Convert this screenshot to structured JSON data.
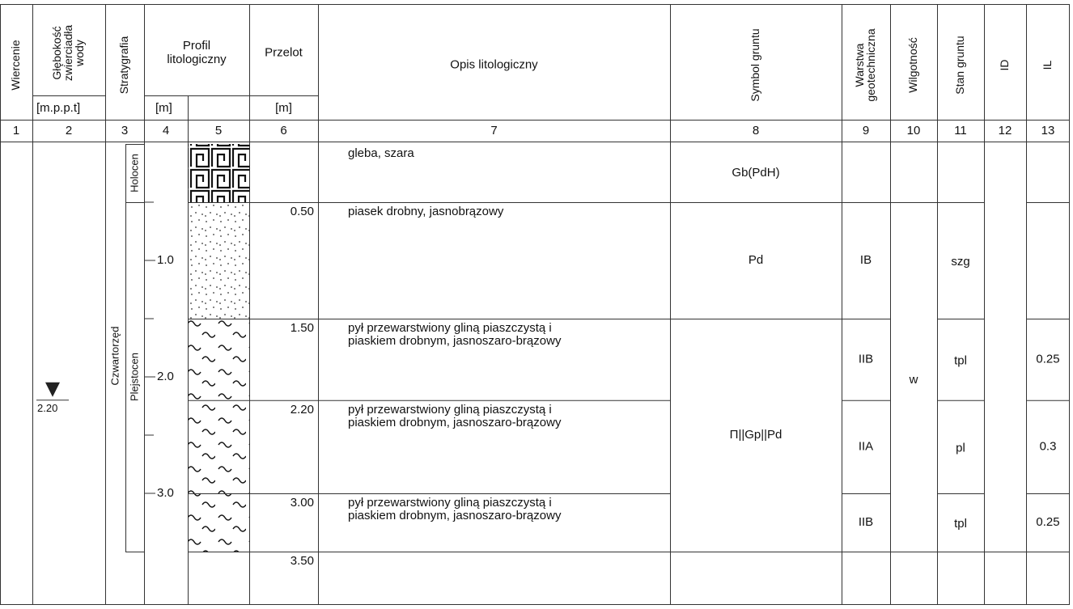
{
  "header": {
    "columns": [
      {
        "title": [
          "Wiercenie"
        ]
      },
      {
        "title": [
          "Głębokość",
          "zwierciadła",
          "wody"
        ],
        "unit": "[m.p.p.t]"
      },
      {
        "title": [
          "Stratygrafia"
        ]
      },
      {
        "title": [
          "Profil",
          "litologiczny"
        ],
        "unit": "[m]"
      },
      {
        "title": [
          "Przelot"
        ],
        "unit": "[m]"
      },
      {
        "title": [
          "Opis litologiczny"
        ]
      },
      {
        "title": [
          "Symbol gruntu"
        ]
      },
      {
        "title": [
          "Warstwa",
          "geotechniczna"
        ]
      },
      {
        "title": [
          "Wilgotność"
        ]
      },
      {
        "title": [
          "Stan gruntu"
        ]
      },
      {
        "title": [
          "ID"
        ]
      },
      {
        "title": [
          "IL"
        ]
      }
    ],
    "numbers": [
      "1",
      "2",
      "3",
      "4",
      "5",
      "6",
      "7",
      "8",
      "9",
      "10",
      "11",
      "12",
      "13"
    ]
  },
  "water_level": "2.20",
  "stratigraphy": {
    "system": "Czwartorzęd",
    "units": [
      "Holocen",
      "Plejstocen"
    ]
  },
  "depth_scale": [
    "1.0",
    "2.0",
    "3.0"
  ],
  "layers": [
    {
      "description": [
        "gleba, szara"
      ],
      "symbol": "Gb(PdH)"
    },
    {
      "top": "0.50",
      "description": [
        "piasek drobny, jasnobrązowy"
      ],
      "symbol": "Pd",
      "layer": "IB",
      "moisture": "w",
      "state": "szg"
    },
    {
      "top": "1.50",
      "description": [
        "pył przewarstwiony gliną piaszczystą i",
        "piaskiem drobnym, jasnoszaro-brązowy"
      ],
      "symbol": "Π||Gp||Pd",
      "layer": "IIB",
      "state": "tpl",
      "IL": "0.25"
    },
    {
      "top": "2.20",
      "description": [
        "pył przewarstwiony gliną piaszczystą i",
        "piaskiem drobnym, jasnoszaro-brązowy"
      ],
      "layer": "IIA",
      "state": "pl",
      "IL": "0.3"
    },
    {
      "top": "3.00",
      "description": [
        "pył przewarstwiony gliną piaszczystą i",
        "piaskiem drobnym, jasnoszaro-brązowy"
      ],
      "layer": "IIB",
      "state": "tpl",
      "IL": "0.25"
    }
  ],
  "bottom": "3.50"
}
